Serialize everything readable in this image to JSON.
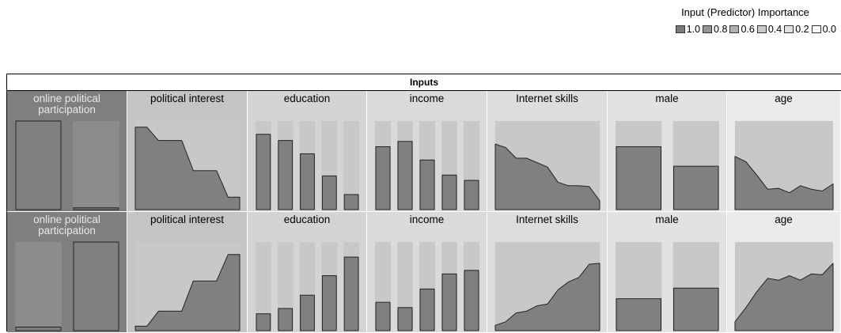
{
  "legend": {
    "title": "Input (Predictor) Importance",
    "items": [
      {
        "label": "1.0",
        "color": "#7a7a7a"
      },
      {
        "label": "0.8",
        "color": "#959595"
      },
      {
        "label": "0.6",
        "color": "#b0b0b0"
      },
      {
        "label": "0.4",
        "color": "#c9c9c9"
      },
      {
        "label": "0.2",
        "color": "#e3e3e3"
      },
      {
        "label": "0.0",
        "color": "#ffffff"
      }
    ]
  },
  "colors": {
    "mark_fill": "#808080",
    "track_fill": "#c8c8c8",
    "first_col_track": "#8c8c8c",
    "cell_backgrounds": [
      "#7f7f7f",
      "#c4c4c4",
      "#d4d4d4",
      "#dadada",
      "#dddddd",
      "#e2e2e2",
      "#eaeaea"
    ]
  },
  "chart_data": {
    "type": "heatmap",
    "title": "Inputs",
    "columns": [
      "online political participation",
      "political interest",
      "education",
      "income",
      "Internet skills",
      "male",
      "age"
    ],
    "importance": [
      1.0,
      0.75,
      0.55,
      0.5,
      0.45,
      0.35,
      0.25
    ],
    "rows": [
      {
        "name": "online political participation",
        "cells": [
          {
            "type": "bar",
            "values": [
              1.0,
              0.02
            ]
          },
          {
            "type": "area",
            "values": [
              0.93,
              0.93,
              0.78,
              0.78,
              0.78,
              0.44,
              0.44,
              0.44,
              0.14,
              0.14
            ]
          },
          {
            "type": "bar",
            "values": [
              0.85,
              0.78,
              0.63,
              0.38,
              0.17
            ]
          },
          {
            "type": "bar",
            "values": [
              0.71,
              0.77,
              0.56,
              0.39,
              0.33
            ]
          },
          {
            "type": "area",
            "values": [
              0.74,
              0.7,
              0.58,
              0.58,
              0.53,
              0.48,
              0.31,
              0.27,
              0.27,
              0.26,
              0.1
            ]
          },
          {
            "type": "bar",
            "values": [
              0.71,
              0.49
            ]
          },
          {
            "type": "area",
            "values": [
              0.6,
              0.54,
              0.39,
              0.23,
              0.24,
              0.19,
              0.27,
              0.23,
              0.21,
              0.29
            ]
          }
        ]
      },
      {
        "name": "online political participation",
        "cells": [
          {
            "type": "bar",
            "values": [
              0.04,
              1.0
            ]
          },
          {
            "type": "area",
            "values": [
              0.05,
              0.05,
              0.22,
              0.22,
              0.22,
              0.56,
              0.56,
              0.56,
              0.86,
              0.86
            ]
          },
          {
            "type": "bar",
            "values": [
              0.19,
              0.25,
              0.4,
              0.62,
              0.83
            ]
          },
          {
            "type": "bar",
            "values": [
              0.32,
              0.26,
              0.47,
              0.64,
              0.68
            ]
          },
          {
            "type": "area",
            "values": [
              0.06,
              0.1,
              0.2,
              0.22,
              0.28,
              0.3,
              0.46,
              0.55,
              0.6,
              0.75,
              0.76
            ]
          },
          {
            "type": "bar",
            "values": [
              0.36,
              0.48
            ]
          },
          {
            "type": "area",
            "values": [
              0.1,
              0.26,
              0.44,
              0.59,
              0.57,
              0.62,
              0.57,
              0.64,
              0.63,
              0.76
            ]
          }
        ]
      }
    ]
  }
}
